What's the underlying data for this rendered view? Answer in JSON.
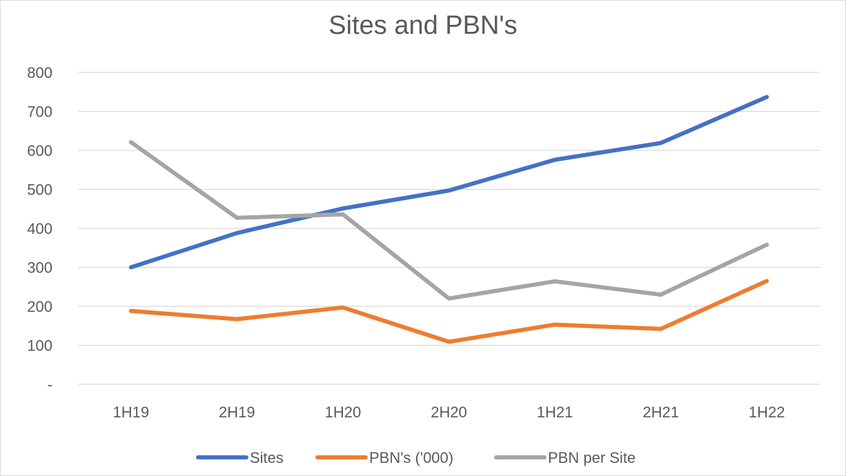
{
  "chart_data": {
    "type": "line",
    "title": "Sites and PBN's",
    "xlabel": "",
    "ylabel": "",
    "categories": [
      "1H19",
      "2H19",
      "1H20",
      "2H20",
      "1H21",
      "2H21",
      "1H22"
    ],
    "y_ticks": [
      {
        "value": 0,
        "label": "-"
      },
      {
        "value": 100,
        "label": "100"
      },
      {
        "value": 200,
        "label": "200"
      },
      {
        "value": 300,
        "label": "300"
      },
      {
        "value": 400,
        "label": "400"
      },
      {
        "value": 500,
        "label": "500"
      },
      {
        "value": 600,
        "label": "600"
      },
      {
        "value": 700,
        "label": "700"
      },
      {
        "value": 800,
        "label": "800"
      }
    ],
    "ylim": [
      0,
      800
    ],
    "grid": true,
    "legend_position": "bottom",
    "series": [
      {
        "name": "Sites",
        "color": "#4472C4",
        "values": [
          300,
          388,
          451,
          497,
          576,
          619,
          737
        ]
      },
      {
        "name": "PBN's ('000)",
        "color": "#ED7D31",
        "values": [
          188,
          167,
          197,
          109,
          153,
          142,
          265
        ]
      },
      {
        "name": "PBN per Site",
        "color": "#A5A5A5",
        "values": [
          621,
          427,
          436,
          220,
          264,
          230,
          358
        ]
      }
    ]
  }
}
